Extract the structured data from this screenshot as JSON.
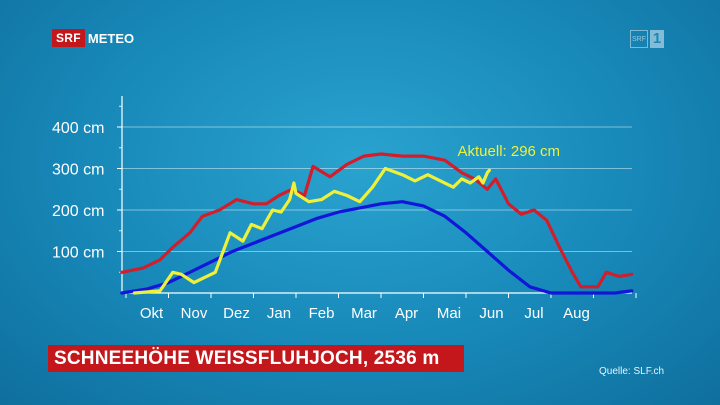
{
  "brand": {
    "srf": "SRF",
    "meteo": "METEO"
  },
  "channel": {
    "srf": "SRF",
    "number": "1"
  },
  "title": "SCHNEEHÖHE WEISSFLUHJOCH, 2536 m",
  "source": "Quelle: SLF.ch",
  "chart_data": {
    "type": "line",
    "title": "SCHNEEHÖHE WEISSFLUHJOCH, 2536 m",
    "y_unit": "cm",
    "ylim": [
      0,
      480
    ],
    "yticks": [
      100,
      200,
      300,
      400
    ],
    "ytick_labels": [
      "100 cm",
      "200 cm",
      "300 cm",
      "400 cm"
    ],
    "grid": true,
    "months": [
      "Okt",
      "Nov",
      "Dez",
      "Jan",
      "Feb",
      "Mar",
      "Apr",
      "Mai",
      "Jun",
      "Jul",
      "Aug"
    ],
    "xlim": [
      -0.15,
      11.2
    ],
    "x_note": "x in months after 1 Oct (0 = 1 Okt)",
    "series": [
      {
        "key": "maximum",
        "color": "#d21d2b",
        "points": [
          [
            -0.1,
            50
          ],
          [
            0.4,
            60
          ],
          [
            0.8,
            80
          ],
          [
            1.1,
            110
          ],
          [
            1.5,
            145
          ],
          [
            1.8,
            185
          ],
          [
            2.2,
            200
          ],
          [
            2.6,
            225
          ],
          [
            3.0,
            215
          ],
          [
            3.3,
            215
          ],
          [
            3.6,
            235
          ],
          [
            3.9,
            250
          ],
          [
            4.2,
            235
          ],
          [
            4.4,
            305
          ],
          [
            4.8,
            280
          ],
          [
            5.2,
            310
          ],
          [
            5.6,
            330
          ],
          [
            6.0,
            335
          ],
          [
            6.5,
            330
          ],
          [
            7.0,
            330
          ],
          [
            7.5,
            320
          ],
          [
            7.9,
            290
          ],
          [
            8.2,
            275
          ],
          [
            8.5,
            250
          ],
          [
            8.7,
            275
          ],
          [
            9.0,
            215
          ],
          [
            9.3,
            190
          ],
          [
            9.6,
            200
          ],
          [
            9.9,
            175
          ],
          [
            10.2,
            110
          ],
          [
            10.5,
            50
          ],
          [
            10.7,
            15
          ],
          [
            11.1,
            15
          ],
          [
            11.3,
            50
          ],
          [
            11.6,
            40
          ],
          [
            11.9,
            45
          ]
        ]
      },
      {
        "key": "mean",
        "color": "#1216d8",
        "points": [
          [
            -0.1,
            0
          ],
          [
            0.5,
            10
          ],
          [
            1.0,
            25
          ],
          [
            1.5,
            50
          ],
          [
            2.0,
            75
          ],
          [
            2.5,
            100
          ],
          [
            3.0,
            120
          ],
          [
            3.5,
            140
          ],
          [
            4.0,
            160
          ],
          [
            4.5,
            180
          ],
          [
            5.0,
            195
          ],
          [
            5.5,
            205
          ],
          [
            6.0,
            215
          ],
          [
            6.5,
            220
          ],
          [
            7.0,
            210
          ],
          [
            7.5,
            185
          ],
          [
            8.0,
            145
          ],
          [
            8.5,
            100
          ],
          [
            9.0,
            55
          ],
          [
            9.5,
            15
          ],
          [
            10.0,
            0
          ],
          [
            10.5,
            0
          ],
          [
            11.0,
            0
          ],
          [
            11.5,
            0
          ],
          [
            11.9,
            5
          ]
        ]
      },
      {
        "key": "current",
        "name": "Aktuell: 296 cm",
        "color": "#eef03a",
        "points": [
          [
            0.2,
            0
          ],
          [
            0.8,
            5
          ],
          [
            1.1,
            50
          ],
          [
            1.3,
            45
          ],
          [
            1.6,
            25
          ],
          [
            2.1,
            50
          ],
          [
            2.45,
            145
          ],
          [
            2.75,
            125
          ],
          [
            2.95,
            165
          ],
          [
            3.2,
            155
          ],
          [
            3.45,
            200
          ],
          [
            3.65,
            195
          ],
          [
            3.85,
            225
          ],
          [
            3.95,
            265
          ],
          [
            4.0,
            240
          ],
          [
            4.3,
            220
          ],
          [
            4.6,
            225
          ],
          [
            4.9,
            245
          ],
          [
            5.2,
            235
          ],
          [
            5.5,
            220
          ],
          [
            5.8,
            255
          ],
          [
            6.1,
            300
          ],
          [
            6.5,
            285
          ],
          [
            6.8,
            270
          ],
          [
            7.1,
            285
          ],
          [
            7.4,
            270
          ],
          [
            7.7,
            255
          ],
          [
            7.9,
            275
          ],
          [
            8.1,
            265
          ],
          [
            8.3,
            280
          ],
          [
            8.4,
            265
          ],
          [
            8.5,
            290
          ],
          [
            8.55,
            296
          ]
        ]
      }
    ],
    "annotation": {
      "text": "Aktuell: 296 cm",
      "x": 7.8,
      "y": 330
    }
  }
}
